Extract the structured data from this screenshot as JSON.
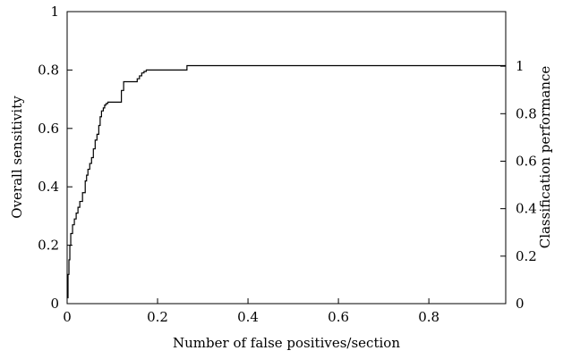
{
  "chart_data": {
    "type": "line",
    "title": "",
    "xlabel": "Number of false positives/section",
    "ylabel": "Overall sensitivity",
    "ylabel_right": "Classification performance",
    "xlim": [
      0,
      0.97
    ],
    "ylim": [
      0,
      1
    ],
    "ylim_right": [
      0,
      1.23
    ],
    "x_ticks": [
      {
        "value": 0,
        "label": "0"
      },
      {
        "value": 0.2,
        "label": "0.2"
      },
      {
        "value": 0.4,
        "label": "0.4"
      },
      {
        "value": 0.6,
        "label": "0.6"
      },
      {
        "value": 0.8,
        "label": "0.8"
      }
    ],
    "y_ticks_left": [
      {
        "value": 0,
        "label": "0"
      },
      {
        "value": 0.2,
        "label": "0.2"
      },
      {
        "value": 0.4,
        "label": "0.4"
      },
      {
        "value": 0.6,
        "label": "0.6"
      },
      {
        "value": 0.8,
        "label": "0.8"
      },
      {
        "value": 1,
        "label": "1"
      }
    ],
    "y_ticks_right": [
      {
        "value": 0,
        "label": "0"
      },
      {
        "value": 0.2,
        "label": "0.2"
      },
      {
        "value": 0.4,
        "label": "0.4"
      },
      {
        "value": 0.6,
        "label": "0.6"
      },
      {
        "value": 0.8,
        "label": "0.8"
      },
      {
        "value": 1,
        "label": "1"
      }
    ],
    "grid": false,
    "legend": "none",
    "series": [
      {
        "step": true,
        "color": "#000000",
        "x": [
          0,
          0.002,
          0.004,
          0.006,
          0.008,
          0.012,
          0.016,
          0.02,
          0.024,
          0.028,
          0.034,
          0.04,
          0.043,
          0.046,
          0.05,
          0.054,
          0.058,
          0.062,
          0.066,
          0.07,
          0.073,
          0.076,
          0.08,
          0.083,
          0.086,
          0.09,
          0.093,
          0.12,
          0.125,
          0.13,
          0.15,
          0.155,
          0.16,
          0.165,
          0.17,
          0.175,
          0.265,
          0.97
        ],
        "y": [
          0.02,
          0.1,
          0.15,
          0.2,
          0.24,
          0.27,
          0.29,
          0.31,
          0.33,
          0.35,
          0.38,
          0.42,
          0.44,
          0.46,
          0.48,
          0.5,
          0.53,
          0.56,
          0.58,
          0.61,
          0.64,
          0.66,
          0.67,
          0.68,
          0.685,
          0.69,
          0.69,
          0.73,
          0.76,
          0.76,
          0.76,
          0.77,
          0.78,
          0.79,
          0.795,
          0.8,
          0.815,
          0.815
        ]
      }
    ]
  }
}
